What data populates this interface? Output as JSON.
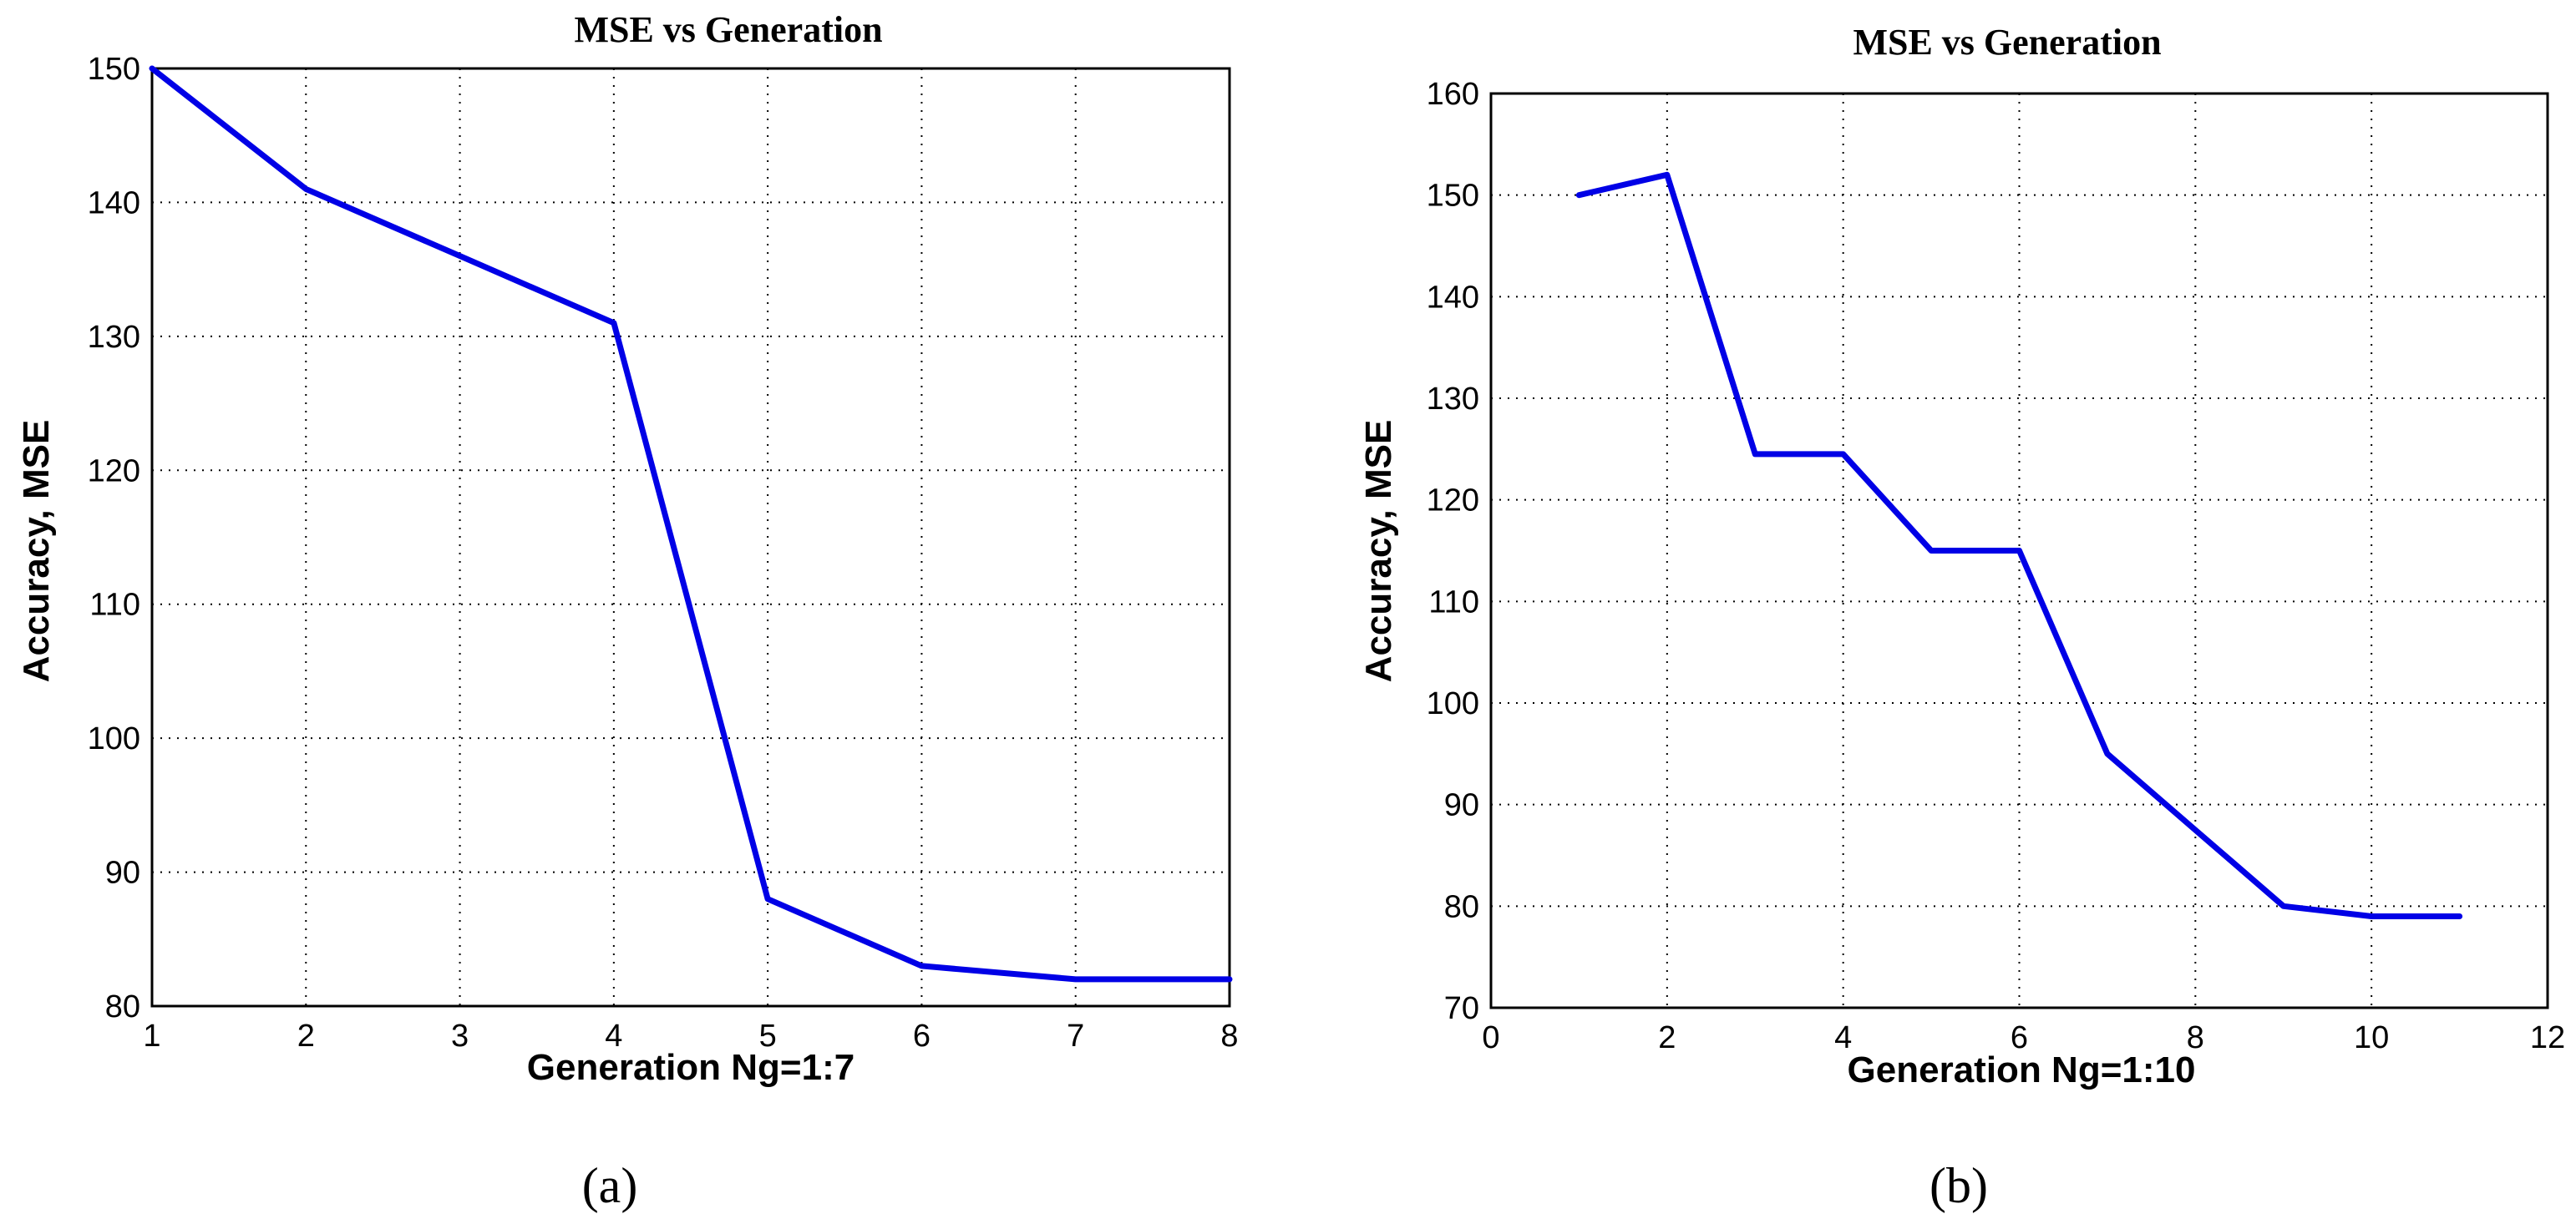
{
  "chart_data": [
    {
      "type": "line",
      "panel_label": "(a)",
      "title": "MSE vs Generation",
      "xlabel": "Generation  Ng=1:7",
      "ylabel": "Accuracy, MSE",
      "xlim": [
        1,
        8
      ],
      "ylim": [
        80,
        150
      ],
      "xticks": [
        1,
        2,
        3,
        4,
        5,
        6,
        7,
        8
      ],
      "yticks": [
        80,
        90,
        100,
        110,
        120,
        130,
        140,
        150
      ],
      "grid": true,
      "series": [
        {
          "name": "MSE",
          "color": "#0000e6",
          "x": [
            1,
            2,
            3,
            4,
            5,
            6,
            7,
            8
          ],
          "y": [
            150,
            141,
            136,
            131,
            88,
            83,
            82,
            82
          ]
        }
      ]
    },
    {
      "type": "line",
      "panel_label": "(b)",
      "title": "MSE vs Generation",
      "xlabel": "Generation  Ng=1:10",
      "ylabel": "Accuracy, MSE",
      "xlim": [
        0,
        12
      ],
      "ylim": [
        70,
        160
      ],
      "xticks": [
        0,
        2,
        4,
        6,
        8,
        10,
        12
      ],
      "yticks": [
        70,
        80,
        90,
        100,
        110,
        120,
        130,
        140,
        150,
        160
      ],
      "grid": true,
      "series": [
        {
          "name": "MSE",
          "color": "#0000e6",
          "x": [
            1,
            2,
            3,
            4,
            5,
            6,
            7,
            8,
            9,
            10,
            11
          ],
          "y": [
            150,
            152,
            124.5,
            124.5,
            115,
            115,
            95,
            87.5,
            80,
            79,
            79
          ]
        }
      ]
    }
  ]
}
